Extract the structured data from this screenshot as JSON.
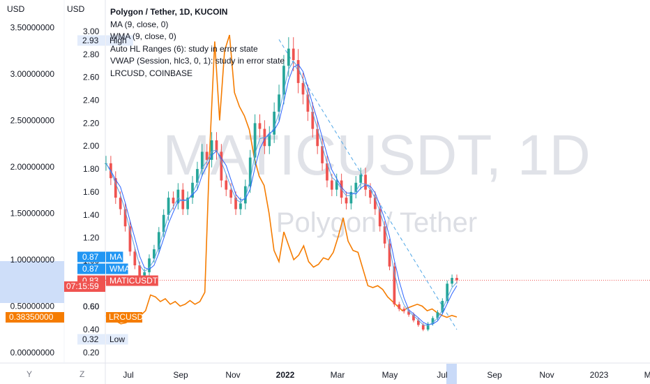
{
  "chart_data": {
    "type": "line",
    "title": "Polygon / Tether, 1D, KUCOIN",
    "symbol": "MATICUSDT",
    "watermark_main": "MATICUSDT, 1D",
    "watermark_sub": "Polygon / Tether",
    "currency_label": "USD",
    "indicators": [
      "MA (9, close, 0)",
      "WMA (9, close, 0)",
      "Auto HL Ranges (6): study in error state",
      "VWAP (Session, hlc3, 0, 1): study in error state",
      "LRCUSD, COINBASE"
    ],
    "x_axis": {
      "labels": [
        "Jul",
        "Sep",
        "Nov",
        "2022",
        "Mar",
        "May",
        "Jul",
        "Sep",
        "Nov",
        "2023",
        "Mar"
      ],
      "bold_label": "2022"
    },
    "left_axis": {
      "ticks": [
        "3.50000000",
        "3.00000000",
        "2.50000000",
        "2.00000000",
        "1.50000000",
        "1.00000000",
        "0.50000000",
        "0.00000000"
      ],
      "tick_values": [
        3.5,
        3.0,
        2.5,
        2.0,
        1.5,
        1.0,
        0.5,
        0.0
      ],
      "badge": "0.38350000",
      "badge_value": 0.3835
    },
    "right_axis": {
      "ticks": [
        "3.00",
        "2.80",
        "2.60",
        "2.40",
        "2.20",
        "2.00",
        "1.80",
        "1.60",
        "1.40",
        "1.20",
        "1.00",
        "0.80",
        "0.60",
        "0.40",
        "0.20"
      ],
      "tick_values": [
        3.0,
        2.8,
        2.6,
        2.4,
        2.2,
        2.0,
        1.8,
        1.6,
        1.4,
        1.2,
        1.0,
        0.8,
        0.6,
        0.4,
        0.2
      ],
      "high": {
        "label": "High",
        "value": "2.93"
      },
      "low": {
        "label": "Low",
        "value": "0.32"
      },
      "ma": {
        "label": "MA",
        "value": "0.87"
      },
      "wma": {
        "label": "WMA",
        "value": "0.87"
      },
      "last": {
        "label": "MATICUSDT",
        "value": "0.83",
        "countdown": "07:15:59"
      },
      "lrc": {
        "label": "LRCUSD"
      },
      "extra_tick": "0.60"
    },
    "matic_close": [
      1.85,
      1.72,
      1.55,
      1.45,
      1.3,
      1.08,
      0.96,
      0.82,
      0.9,
      1.02,
      1.1,
      1.25,
      1.4,
      1.55,
      1.5,
      1.62,
      1.45,
      1.55,
      1.68,
      1.8,
      1.95,
      1.88,
      2.05,
      1.95,
      1.7,
      1.62,
      1.55,
      1.45,
      1.5,
      1.65,
      1.9,
      2.2,
      2.15,
      2.0,
      2.1,
      2.3,
      2.45,
      2.7,
      2.85,
      2.75,
      2.55,
      2.45,
      2.3,
      2.15,
      2.0,
      1.85,
      1.7,
      1.62,
      1.7,
      1.55,
      1.5,
      1.6,
      1.68,
      1.75,
      1.62,
      1.55,
      1.45,
      1.3,
      1.15,
      0.95,
      0.62,
      0.58,
      0.56,
      0.53,
      0.48,
      0.44,
      0.4,
      0.45,
      0.5,
      0.55,
      0.65,
      0.8,
      0.85,
      0.83
    ],
    "lrc_close": [
      0.4,
      0.36,
      0.34,
      0.31,
      0.32,
      0.35,
      0.38,
      0.4,
      0.45,
      0.62,
      0.6,
      0.55,
      0.58,
      0.52,
      0.55,
      0.5,
      0.52,
      0.56,
      0.52,
      0.55,
      0.65,
      2.2,
      3.35,
      2.5,
      3.25,
      3.42,
      2.8,
      2.65,
      2.55,
      2.4,
      2.1,
      1.9,
      1.8,
      1.5,
      1.1,
      0.98,
      1.3,
      1.15,
      1.0,
      1.05,
      1.15,
      0.98,
      0.92,
      0.95,
      1.02,
      1.0,
      1.08,
      1.25,
      1.45,
      1.2,
      1.1,
      1.08,
      0.9,
      0.72,
      0.7,
      0.72,
      0.68,
      0.6,
      0.55,
      0.5,
      0.45,
      0.48,
      0.5,
      0.52,
      0.5,
      0.45,
      0.47,
      0.43,
      0.4,
      0.38,
      0.4,
      0.3835
    ],
    "trendline": {
      "from": 2.93,
      "to": 0.4
    },
    "colors": {
      "matic_up": "#26a69a",
      "matic_down": "#ef5350",
      "lrc": "#f57c00",
      "ma": "#2962ff",
      "wma": "#5ba3e0",
      "trend": "#4ea6e6",
      "last_price": "#ef5350",
      "badge_blue": "#2196f3",
      "highlight": "#c9daf8",
      "axis_text": "#131722",
      "watermark": "#d1d4dc"
    },
    "buttons": {
      "y": "Y",
      "z": "Z"
    }
  }
}
